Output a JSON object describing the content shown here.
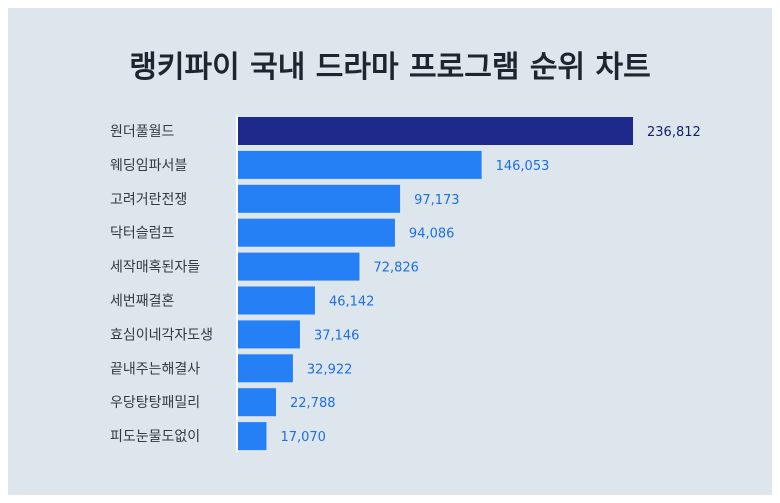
{
  "chart_data": {
    "type": "bar",
    "orientation": "horizontal",
    "title": "랭키파이 국내 드라마 프로그램 순위 차트",
    "categories": [
      "원더풀월드",
      "웨딩임파서블",
      "고려거란전쟁",
      "닥터슬럼프",
      "세작매혹된자들",
      "세번째결혼",
      "효심이네각자도생",
      "끝내주는해결사",
      "우당탕탕패밀리",
      "피도눈물도없이"
    ],
    "values": [
      236812,
      146053,
      97173,
      94086,
      72826,
      46142,
      37146,
      32922,
      22788,
      17070
    ],
    "value_labels": [
      "236,812",
      "146,053",
      "97,173",
      "94,086",
      "72,826",
      "46,142",
      "37,146",
      "32,922",
      "22,788",
      "17,070"
    ],
    "xlim": [
      0,
      236812
    ],
    "grid": false,
    "legend": "none",
    "colors": {
      "background": "#dce6ec",
      "bar": "#2680f5",
      "bar_top": "#1d2a8c",
      "label_value": "#1f6fe0",
      "label_value_top": "#16206e"
    }
  }
}
